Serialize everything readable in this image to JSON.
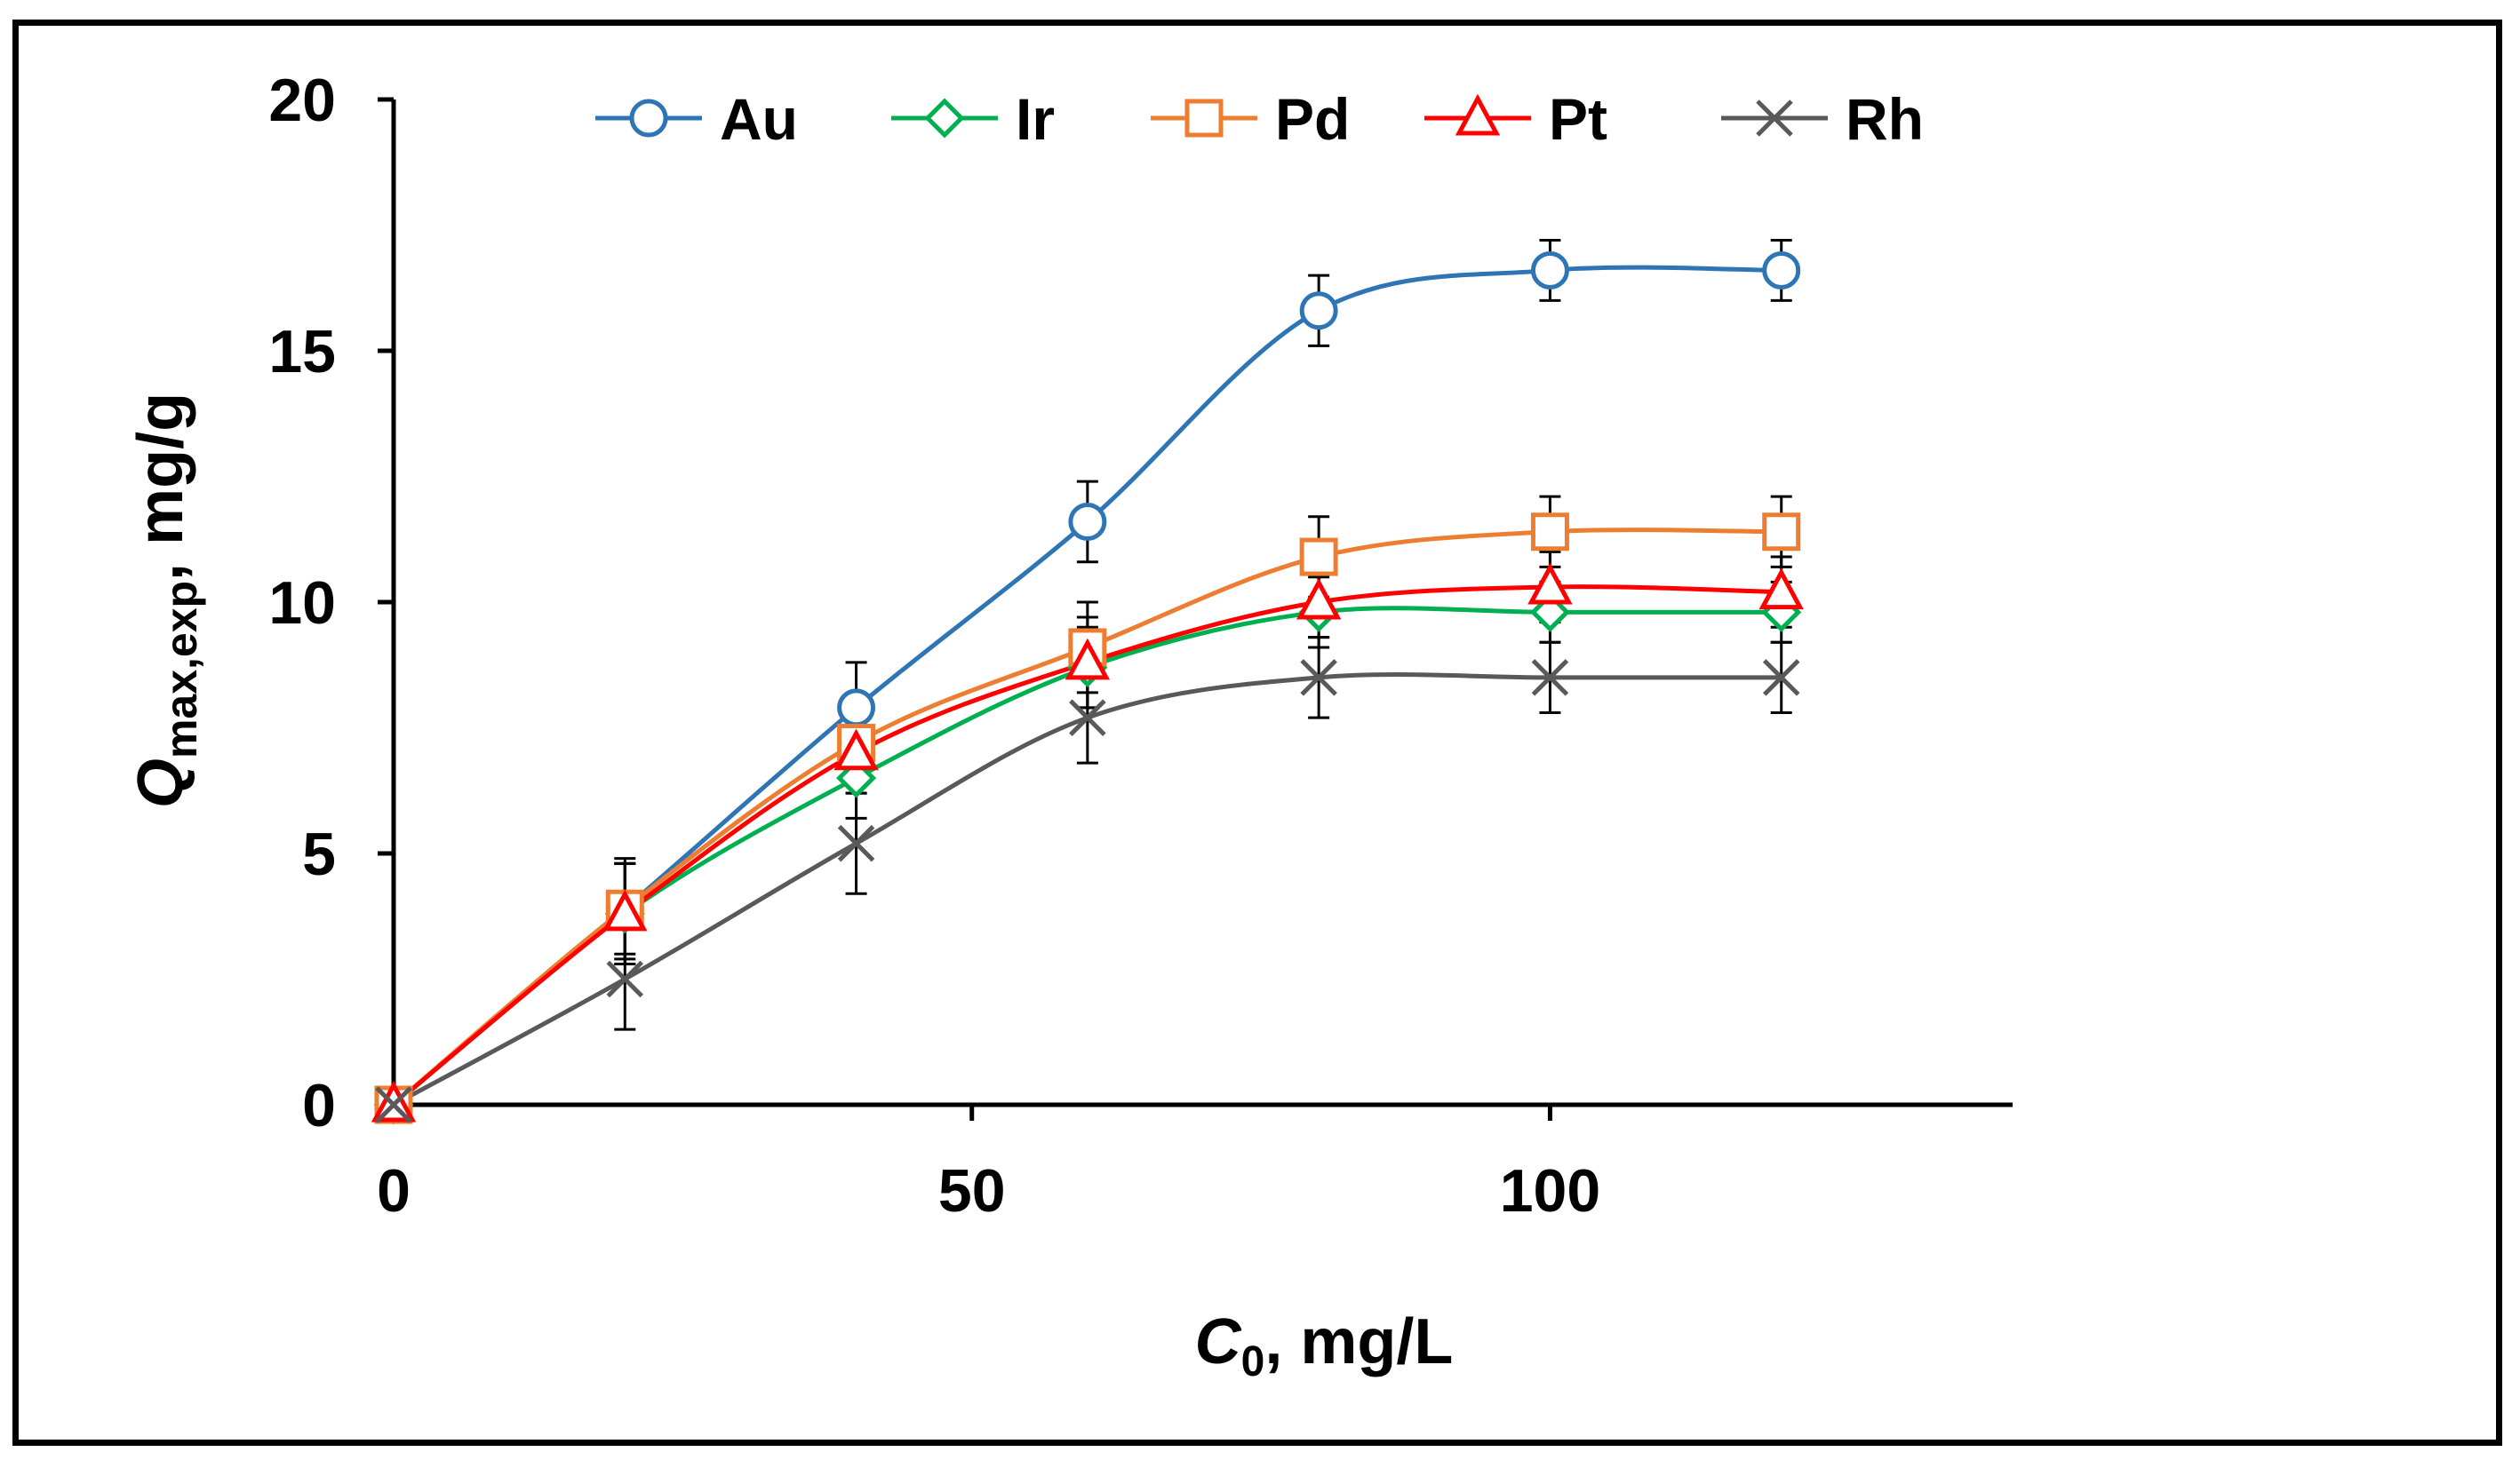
{
  "chart_data": {
    "type": "line",
    "title": "",
    "xlabel": {
      "italic": "C",
      "sub": "0",
      "rest": ", mg/L"
    },
    "ylabel": {
      "italic": "Q",
      "sub": "max,exp",
      "rest": ", mg/g"
    },
    "xlim": [
      0,
      140
    ],
    "ylim": [
      0,
      20
    ],
    "xticks": [
      0,
      50,
      100
    ],
    "yticks": [
      0,
      5,
      10,
      15,
      20
    ],
    "xtick_labels": [
      "0",
      "50",
      "100"
    ],
    "ytick_labels": [
      "0",
      "5",
      "10",
      "15",
      "20"
    ],
    "grid": false,
    "legend_position": "top",
    "x": [
      0,
      20,
      40,
      60,
      80,
      100,
      120
    ],
    "series": [
      {
        "name": "Au",
        "color": "#2E75B6",
        "marker": "circle",
        "values": [
          0,
          3.9,
          7.9,
          11.6,
          15.8,
          16.6,
          16.6
        ],
        "errors": [
          0,
          0.9,
          0.9,
          0.8,
          0.7,
          0.6,
          0.6
        ]
      },
      {
        "name": "Ir",
        "color": "#00B050",
        "marker": "diamond",
        "values": [
          0,
          3.8,
          6.5,
          8.7,
          9.8,
          9.8,
          9.8
        ],
        "errors": [
          0,
          1.0,
          0.8,
          0.8,
          0.7,
          0.6,
          0.6
        ]
      },
      {
        "name": "Pd",
        "color": "#ED7D31",
        "marker": "square",
        "values": [
          0,
          3.9,
          7.2,
          9.1,
          10.9,
          11.4,
          11.4
        ],
        "errors": [
          0,
          1.0,
          0.8,
          0.9,
          0.8,
          0.7,
          0.7
        ]
      },
      {
        "name": "Pt",
        "color": "#FF0000",
        "marker": "triangle",
        "values": [
          0,
          3.8,
          7.0,
          8.8,
          10.0,
          10.3,
          10.2
        ],
        "errors": [
          0,
          1.0,
          0.8,
          0.9,
          0.7,
          0.7,
          0.7
        ]
      },
      {
        "name": "Rh",
        "color": "#595959",
        "marker": "x",
        "values": [
          0,
          2.5,
          5.2,
          7.7,
          8.5,
          8.5,
          8.5
        ],
        "errors": [
          0,
          1.0,
          1.0,
          0.9,
          0.8,
          0.7,
          0.7
        ]
      }
    ]
  }
}
